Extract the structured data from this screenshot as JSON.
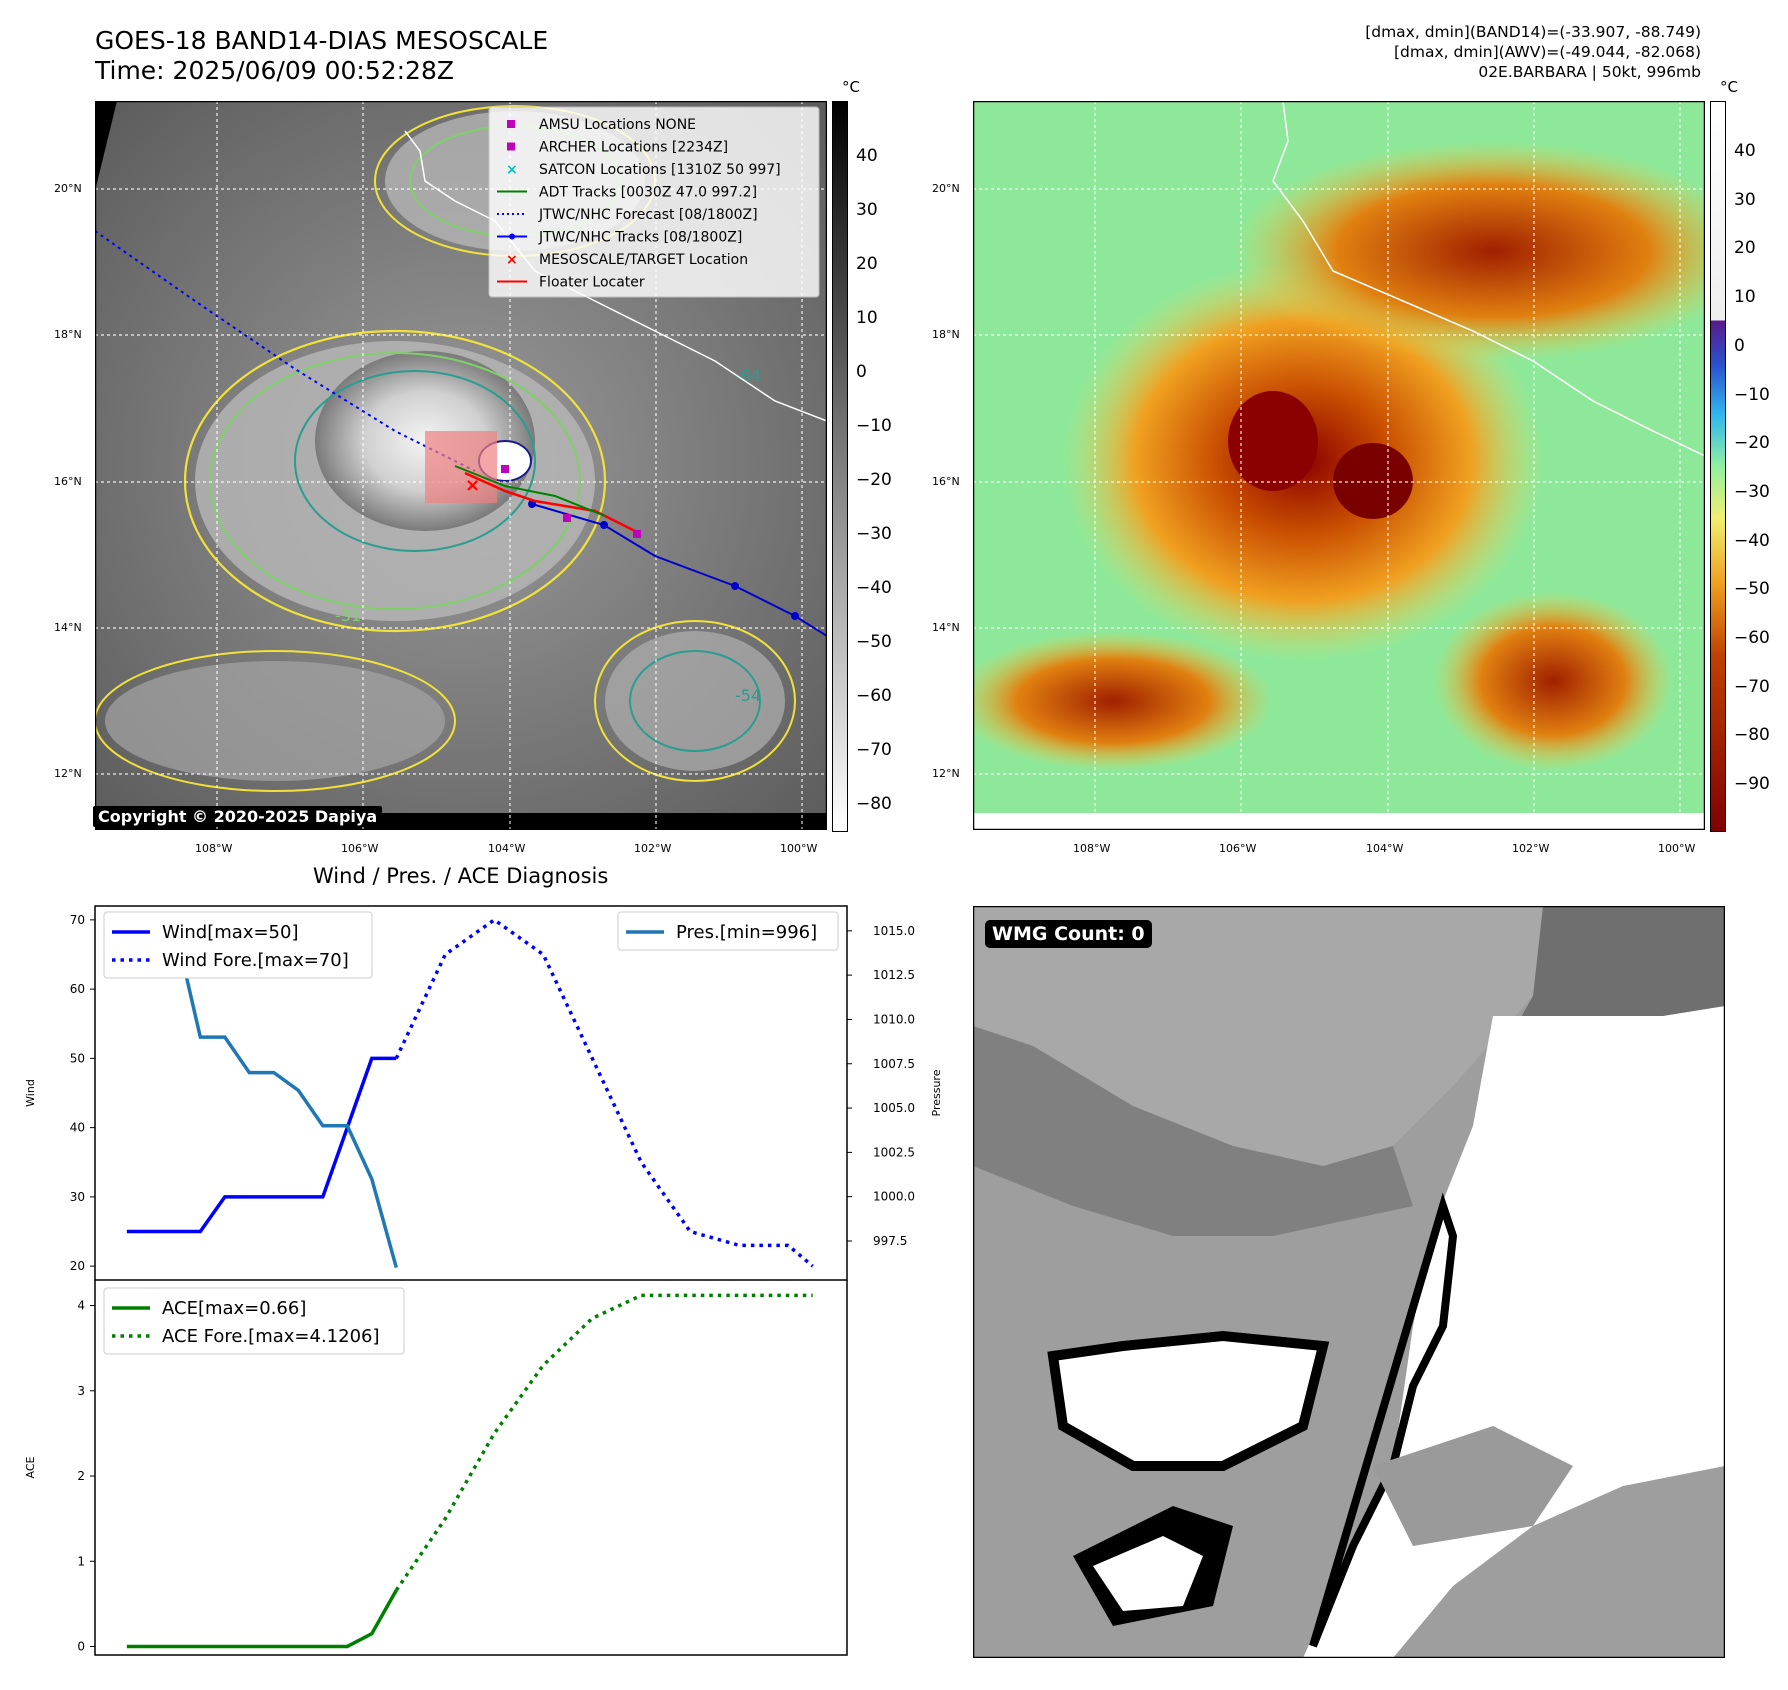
{
  "header": {
    "title_line1": "GOES-18 BAND14-DIAS MESOSCALE",
    "title_line2": "Time: 2025/06/09 00:52:28Z",
    "info_line1": "[dmax, dmin](BAND14)=(-33.907, -88.749)",
    "info_line2": "[dmax, dmin](AWV)=(-49.044, -82.068)",
    "info_line3": "02E.BARBARA | 50kt, 996mb"
  },
  "map_axes": {
    "lat_labels": [
      "20°N",
      "18°N",
      "16°N",
      "14°N",
      "12°N"
    ],
    "lon_labels": [
      "108°W",
      "106°W",
      "104°W",
      "102°W",
      "100°W"
    ]
  },
  "colorbar_left": {
    "unit": "°C",
    "ticks": [
      "40",
      "30",
      "20",
      "10",
      "0",
      "−10",
      "−20",
      "−30",
      "−40",
      "−50",
      "−60",
      "−70",
      "−80"
    ]
  },
  "colorbar_right": {
    "unit": "°C",
    "ticks": [
      "40",
      "30",
      "20",
      "10",
      "0",
      "−10",
      "−20",
      "−30",
      "−40",
      "−50",
      "−60",
      "−70",
      "−80",
      "−90"
    ]
  },
  "contour_labels": [
    "-31",
    "-54",
    "-64"
  ],
  "legend_map": [
    {
      "label": "AMSU Locations NONE",
      "color": "#bf00bf",
      "kind": "square"
    },
    {
      "label": "ARCHER Locations [2234Z]",
      "color": "#bf00bf",
      "kind": "square"
    },
    {
      "label": "SATCON Locations [1310Z 50 997]",
      "color": "#00bfbf",
      "kind": "x"
    },
    {
      "label": "ADT Tracks [0030Z 47.0 997.2]",
      "color": "#008000",
      "kind": "line"
    },
    {
      "label": "JTWC/NHC Forecast [08/1800Z]",
      "color": "#0000ff",
      "kind": "dotted"
    },
    {
      "label": "JTWC/NHC Tracks [08/1800Z]",
      "color": "#0000ff",
      "kind": "line-dot"
    },
    {
      "label": "MESOSCALE/TARGET Location",
      "color": "#ff0000",
      "kind": "x"
    },
    {
      "label": "Floater Locater",
      "color": "#ff0000",
      "kind": "line"
    }
  ],
  "copyright": "Copyright © 2020-2025 Dapiya",
  "wmg_label": "WMG Count: 0",
  "diagnosis_title": "Wind / Pres. / ACE Diagnosis",
  "colors": {
    "wind": "#0000ff",
    "pressure": "#1f77b4",
    "ace": "#008000",
    "track": "#0000cd",
    "floater": "#ff0000"
  },
  "chart_data": [
    {
      "type": "line",
      "ylabel": "Wind",
      "ylim": [
        18,
        72
      ],
      "yticks": [
        20,
        30,
        40,
        50,
        60,
        70
      ],
      "y2label": "Pressure",
      "y2lim": [
        995.3,
        1016.4
      ],
      "y2ticks": [
        "997.5",
        "1000.0",
        "1002.5",
        "1005.0",
        "1007.5",
        "1010.0",
        "1012.5",
        "1015.0"
      ],
      "legend_left": [
        "Wind[max=50]",
        "Wind Fore.[max=70]"
      ],
      "legend_right": [
        "Pres.[min=996]"
      ],
      "series": [
        {
          "name": "Wind[max=50]",
          "style": "solid",
          "x": [
            0,
            3,
            4,
            5,
            6,
            7,
            8,
            9,
            10,
            11
          ],
          "values": [
            25,
            25,
            30,
            30,
            30,
            30,
            30,
            40,
            50,
            50
          ]
        },
        {
          "name": "Wind Fore.[max=70]",
          "style": "dotted",
          "x": [
            11,
            13,
            15,
            17,
            19,
            21,
            23,
            25,
            27,
            28
          ],
          "values": [
            50,
            65,
            70,
            65,
            50,
            35,
            25,
            23,
            23,
            20
          ]
        },
        {
          "name": "Pres.[min=996]",
          "style": "solid",
          "axis": "right",
          "x": [
            0,
            2,
            3,
            4,
            5,
            6,
            7,
            8,
            9,
            10,
            11
          ],
          "values": [
            1015,
            1015,
            1009,
            1009,
            1007,
            1007,
            1006,
            1004,
            1004,
            1001,
            996
          ]
        }
      ]
    },
    {
      "type": "line",
      "ylabel": "ACE",
      "ylim": [
        -0.1,
        4.3
      ],
      "yticks": [
        0,
        1,
        2,
        3,
        4
      ],
      "legend": [
        "ACE[max=0.66]",
        "ACE Fore.[max=4.1206]"
      ],
      "series": [
        {
          "name": "ACE[max=0.66]",
          "style": "solid",
          "x": [
            0,
            3,
            6,
            9,
            10,
            11
          ],
          "values": [
            0,
            0,
            0,
            0,
            0.15,
            0.66
          ]
        },
        {
          "name": "ACE Fore.[max=4.1206]",
          "style": "dotted",
          "x": [
            11,
            13,
            15,
            17,
            19,
            21,
            23,
            25,
            27,
            28
          ],
          "values": [
            0.66,
            1.5,
            2.5,
            3.3,
            3.85,
            4.12,
            4.12,
            4.12,
            4.12,
            4.12
          ]
        }
      ]
    }
  ]
}
